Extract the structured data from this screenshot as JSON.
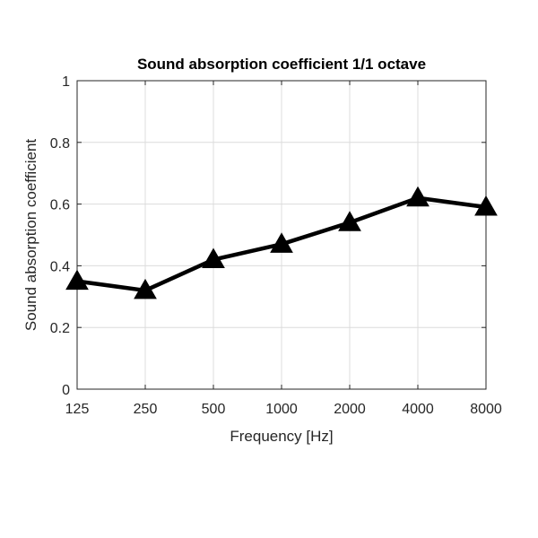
{
  "chart_data": {
    "type": "line",
    "title": "Sound absorption coefficient 1/1 octave",
    "xlabel": "Frequency [Hz]",
    "ylabel": "Sound absorption coefficient",
    "categories": [
      "125",
      "250",
      "500",
      "1000",
      "2000",
      "4000",
      "8000"
    ],
    "yticks": [
      "0",
      "0.2",
      "0.4",
      "0.6",
      "0.8",
      "1"
    ],
    "ylim": [
      0,
      1
    ],
    "grid": true,
    "legend": "none",
    "marker": "triangle-up",
    "series": [
      {
        "values": [
          0.35,
          0.32,
          0.42,
          0.47,
          0.54,
          0.62,
          0.59
        ],
        "color": "#000000"
      }
    ]
  }
}
